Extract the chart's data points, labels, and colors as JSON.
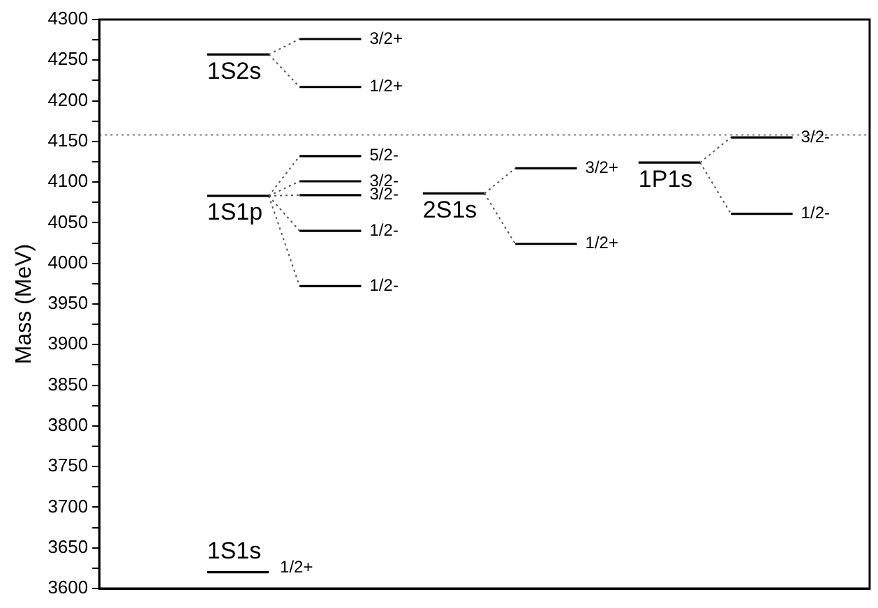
{
  "chart_data": {
    "type": "line",
    "ylabel": "Mass (MeV)",
    "ylim": [
      3600,
      4300
    ],
    "categories": [
      null,
      null,
      null,
      null,
      null,
      null,
      null,
      null,
      null,
      null,
      null,
      null,
      null,
      null,
      null,
      null,
      null,
      null,
      null,
      null,
      null,
      null,
      null,
      null,
      null
    ],
    "yticks": [
      3600,
      {
        "value": 3625,
        "label": null
      },
      3650,
      {
        "value": 3675,
        "label": null
      },
      3700,
      {
        "value": 3725,
        "label": null
      },
      3750,
      {
        "value": 3775,
        "label": null
      },
      3800,
      {
        "value": 3825,
        "label": null
      },
      3850,
      {
        "value": 3875,
        "label": null
      },
      3900,
      {
        "value": 3925,
        "label": null
      },
      3950,
      {
        "value": 3975,
        "label": null
      },
      4000,
      {
        "value": 4025,
        "label": null
      },
      4050,
      {
        "value": 4075,
        "label": null
      },
      4100,
      {
        "value": 4125,
        "label": null
      },
      4150,
      {
        "value": 4175,
        "label": null
      },
      4200,
      {
        "value": 4225,
        "label": null
      },
      4250,
      {
        "value": 4275,
        "label": null
      },
      4300
    ],
    "tick_labels": "y",
    "grid": false,
    "legend": false,
    "marker": "none",
    "series": [
      {
        "name": "1S2s",
        "color": "#000000",
        "values": [
          null,
          null,
          null,
          4257,
          4257,
          4257,
          null,
          null,
          null,
          null,
          null,
          null,
          null,
          null,
          null,
          null,
          null,
          null,
          null,
          null,
          null,
          null,
          null,
          null,
          null
        ]
      },
      {
        "name": "3/2+",
        "color": "#000000",
        "values": [
          null,
          null,
          null,
          null,
          null,
          null,
          4276,
          4276,
          4276,
          null,
          null,
          null,
          null,
          null,
          null,
          null,
          null,
          null,
          null,
          null,
          null,
          null,
          null,
          null,
          null
        ]
      },
      {
        "name": "1/2+",
        "color": "#000000",
        "values": [
          null,
          null,
          null,
          null,
          null,
          null,
          4217,
          4217,
          4217,
          null,
          null,
          null,
          null,
          null,
          null,
          null,
          null,
          null,
          null,
          null,
          null,
          null,
          null,
          null,
          null
        ]
      },
      {
        "color": "#555555",
        "line_style": "dotted",
        "values": [
          null,
          null,
          null,
          null,
          null,
          4257,
          4276,
          null,
          null,
          null,
          null,
          null,
          null,
          null,
          null,
          null,
          null,
          null,
          null,
          null,
          null,
          null,
          null,
          null,
          null
        ]
      },
      {
        "color": "#555555",
        "line_style": "dotted",
        "values": [
          null,
          null,
          null,
          null,
          null,
          4257,
          4217,
          null,
          null,
          null,
          null,
          null,
          null,
          null,
          null,
          null,
          null,
          null,
          null,
          null,
          null,
          null,
          null,
          null,
          null
        ]
      },
      {
        "name": "1S1p",
        "color": "#000000",
        "values": [
          null,
          null,
          null,
          4083,
          4083,
          4083,
          null,
          null,
          null,
          null,
          null,
          null,
          null,
          null,
          null,
          null,
          null,
          null,
          null,
          null,
          null,
          null,
          null,
          null,
          null
        ]
      },
      {
        "name": "5/2-",
        "color": "#000000",
        "values": [
          null,
          null,
          null,
          null,
          null,
          null,
          4132,
          4132,
          4132,
          null,
          null,
          null,
          null,
          null,
          null,
          null,
          null,
          null,
          null,
          null,
          null,
          null,
          null,
          null,
          null
        ]
      },
      {
        "name": "3/2-",
        "color": "#000000",
        "values": [
          null,
          null,
          null,
          null,
          null,
          null,
          4101,
          4101,
          4101,
          null,
          null,
          null,
          null,
          null,
          null,
          null,
          null,
          null,
          null,
          null,
          null,
          null,
          null,
          null,
          null
        ]
      },
      {
        "name": "3/2-",
        "color": "#000000",
        "values": [
          null,
          null,
          null,
          null,
          null,
          null,
          4084,
          4084,
          4084,
          null,
          null,
          null,
          null,
          null,
          null,
          null,
          null,
          null,
          null,
          null,
          null,
          null,
          null,
          null,
          null
        ]
      },
      {
        "name": "1/2-",
        "color": "#000000",
        "values": [
          null,
          null,
          null,
          null,
          null,
          null,
          4040,
          4040,
          4040,
          null,
          null,
          null,
          null,
          null,
          null,
          null,
          null,
          null,
          null,
          null,
          null,
          null,
          null,
          null,
          null
        ]
      },
      {
        "name": "1/2-",
        "color": "#000000",
        "values": [
          null,
          null,
          null,
          null,
          null,
          null,
          3972,
          3972,
          3972,
          null,
          null,
          null,
          null,
          null,
          null,
          null,
          null,
          null,
          null,
          null,
          null,
          null,
          null,
          null,
          null
        ]
      },
      {
        "color": "#555555",
        "line_style": "dotted",
        "values": [
          null,
          null,
          null,
          null,
          null,
          4083,
          4132,
          null,
          null,
          null,
          null,
          null,
          null,
          null,
          null,
          null,
          null,
          null,
          null,
          null,
          null,
          null,
          null,
          null,
          null
        ]
      },
      {
        "color": "#555555",
        "line_style": "dotted",
        "values": [
          null,
          null,
          null,
          null,
          null,
          4083,
          4101,
          null,
          null,
          null,
          null,
          null,
          null,
          null,
          null,
          null,
          null,
          null,
          null,
          null,
          null,
          null,
          null,
          null,
          null
        ]
      },
      {
        "color": "#555555",
        "line_style": "dotted",
        "values": [
          null,
          null,
          null,
          null,
          null,
          4083,
          4084,
          null,
          null,
          null,
          null,
          null,
          null,
          null,
          null,
          null,
          null,
          null,
          null,
          null,
          null,
          null,
          null,
          null,
          null
        ]
      },
      {
        "color": "#555555",
        "line_style": "dotted",
        "values": [
          null,
          null,
          null,
          null,
          null,
          4083,
          4040,
          null,
          null,
          null,
          null,
          null,
          null,
          null,
          null,
          null,
          null,
          null,
          null,
          null,
          null,
          null,
          null,
          null,
          null
        ]
      },
      {
        "color": "#555555",
        "line_style": "dotted",
        "values": [
          null,
          null,
          null,
          null,
          null,
          4083,
          3972,
          null,
          null,
          null,
          null,
          null,
          null,
          null,
          null,
          null,
          null,
          null,
          null,
          null,
          null,
          null,
          null,
          null,
          null
        ]
      },
      {
        "name": "1S1s",
        "color": "#000000",
        "values": [
          null,
          null,
          null,
          3620,
          3620,
          3620,
          null,
          null,
          null,
          null,
          null,
          null,
          null,
          null,
          null,
          null,
          null,
          null,
          null,
          null,
          null,
          null,
          null,
          null,
          null
        ],
        "value_labels": [
          null,
          null,
          null,
          null,
          null,
          "1/2+",
          null,
          null,
          null,
          null,
          null,
          null,
          null,
          null,
          null,
          null,
          null,
          null,
          null,
          null,
          null,
          null,
          null,
          null,
          null
        ]
      },
      {
        "name": "2S1s",
        "color": "#000000",
        "values": [
          null,
          null,
          null,
          null,
          null,
          null,
          null,
          null,
          null,
          null,
          4086,
          4086,
          4086,
          null,
          null,
          null,
          null,
          null,
          null,
          null,
          null,
          null,
          null,
          null,
          null
        ]
      },
      {
        "name": "3/2+",
        "color": "#000000",
        "values": [
          null,
          null,
          null,
          null,
          null,
          null,
          null,
          null,
          null,
          null,
          null,
          null,
          null,
          4117,
          4117,
          4117,
          null,
          null,
          null,
          null,
          null,
          null,
          null,
          null,
          null
        ]
      },
      {
        "name": "1/2+",
        "color": "#000000",
        "values": [
          null,
          null,
          null,
          null,
          null,
          null,
          null,
          null,
          null,
          null,
          null,
          null,
          null,
          4024,
          4024,
          4024,
          null,
          null,
          null,
          null,
          null,
          null,
          null,
          null,
          null
        ]
      },
      {
        "color": "#555555",
        "line_style": "dotted",
        "values": [
          null,
          null,
          null,
          null,
          null,
          null,
          null,
          null,
          null,
          null,
          null,
          null,
          4086,
          4117,
          null,
          null,
          null,
          null,
          null,
          null,
          null,
          null,
          null,
          null,
          null
        ]
      },
      {
        "color": "#555555",
        "line_style": "dotted",
        "values": [
          null,
          null,
          null,
          null,
          null,
          null,
          null,
          null,
          null,
          null,
          null,
          null,
          4086,
          4024,
          null,
          null,
          null,
          null,
          null,
          null,
          null,
          null,
          null,
          null,
          null
        ]
      },
      {
        "name": "1P1s",
        "color": "#000000",
        "values": [
          null,
          null,
          null,
          null,
          null,
          null,
          null,
          null,
          null,
          null,
          null,
          null,
          null,
          null,
          null,
          null,
          null,
          4124,
          4124,
          4124,
          null,
          null,
          null,
          null,
          null
        ]
      },
      {
        "name": "3/2-",
        "color": "#000000",
        "values": [
          null,
          null,
          null,
          null,
          null,
          null,
          null,
          null,
          null,
          null,
          null,
          null,
          null,
          null,
          null,
          null,
          null,
          null,
          null,
          null,
          4155,
          4155,
          4155,
          null,
          null
        ]
      },
      {
        "name": "1/2-",
        "color": "#000000",
        "values": [
          null,
          null,
          null,
          null,
          null,
          null,
          null,
          null,
          null,
          null,
          null,
          null,
          null,
          null,
          null,
          null,
          null,
          null,
          null,
          null,
          4061,
          4061,
          4061,
          null,
          null
        ]
      },
      {
        "color": "#555555",
        "line_style": "dotted",
        "values": [
          null,
          null,
          null,
          null,
          null,
          null,
          null,
          null,
          null,
          null,
          null,
          null,
          null,
          null,
          null,
          null,
          null,
          null,
          null,
          4124,
          4155,
          null,
          null,
          null,
          null
        ]
      },
      {
        "color": "#555555",
        "line_style": "dotted",
        "values": [
          null,
          null,
          null,
          null,
          null,
          null,
          null,
          null,
          null,
          null,
          null,
          null,
          null,
          null,
          null,
          null,
          null,
          null,
          null,
          4124,
          4061,
          null,
          null,
          null,
          null
        ]
      }
    ],
    "ref_lines": [
      {
        "axis": "y",
        "value": 4158,
        "color": "#777777",
        "line_style": "dotted"
      }
    ]
  }
}
